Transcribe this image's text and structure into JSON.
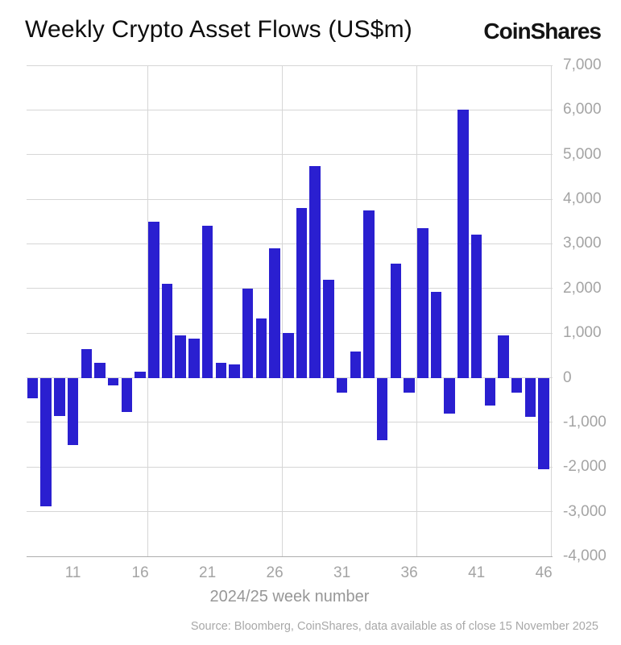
{
  "title": "Weekly Crypto Asset Flows (US$m)",
  "logo": "CoinShares",
  "source": "Source: Bloomberg, CoinShares, data available as of close 15 November 2025",
  "chart_data": {
    "type": "bar",
    "title": "Weekly Crypto Asset Flows (US$m)",
    "xlabel": "2024/25 week number",
    "ylabel": "",
    "x": [
      8,
      9,
      10,
      11,
      12,
      13,
      14,
      15,
      16,
      17,
      18,
      19,
      20,
      21,
      22,
      23,
      24,
      25,
      26,
      27,
      28,
      29,
      30,
      31,
      32,
      33,
      34,
      35,
      36,
      37,
      38,
      39,
      40,
      41,
      42,
      43,
      44,
      45,
      46
    ],
    "values": [
      -460,
      -2880,
      -850,
      -1500,
      650,
      330,
      -180,
      -770,
      130,
      3500,
      2100,
      950,
      870,
      3400,
      330,
      300,
      2000,
      1320,
      2900,
      1000,
      3800,
      4750,
      2200,
      -330,
      590,
      3750,
      -1400,
      2550,
      -330,
      3350,
      1920,
      -800,
      6000,
      3200,
      -620,
      950,
      -330,
      -880,
      -2050
    ],
    "xticks": [
      11,
      16,
      21,
      26,
      31,
      36,
      41,
      46
    ],
    "yticks": [
      7000,
      6000,
      5000,
      4000,
      3000,
      2000,
      1000,
      0,
      -1000,
      -2000,
      -3000,
      -4000
    ],
    "ylim": [
      -4000,
      7000
    ],
    "x_range": [
      7.55,
      46.65
    ],
    "vgrid_x": [
      16.55,
      26.55,
      36.55,
      46.55
    ],
    "grid": true,
    "legend_position": "none",
    "colors": {
      "bar": "#2a1fd0",
      "gridline": "#d6d6d6",
      "axis_line": "#aeaeae",
      "tick_text": "#a4a4a4",
      "title_text": "#0e0e0e"
    }
  }
}
